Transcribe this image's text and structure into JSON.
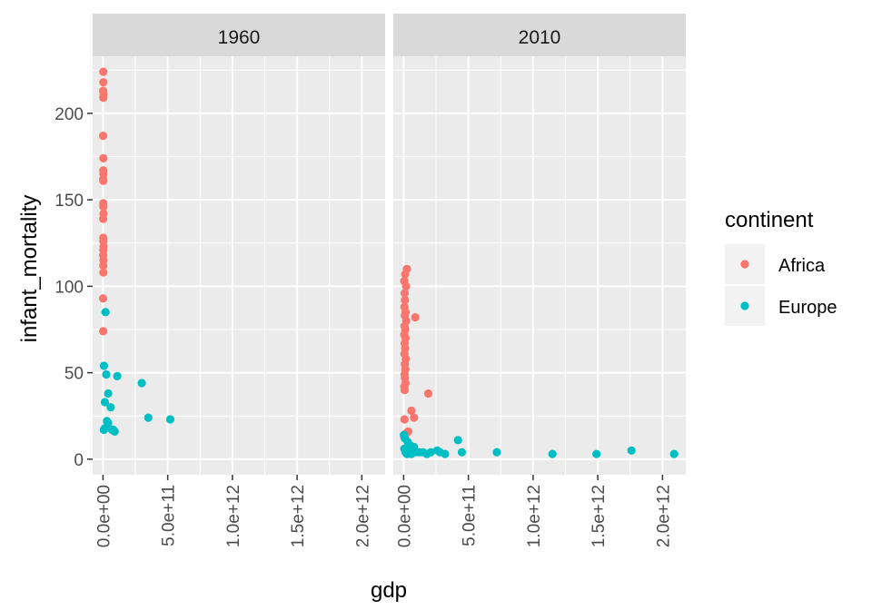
{
  "chart_data": {
    "type": "scatter",
    "xlabel": "gdp",
    "ylabel": "infant_mortality",
    "xlim": [
      0,
      2100000000000
    ],
    "ylim": [
      0,
      225
    ],
    "x_ticks": [
      0,
      500000000000,
      1000000000000,
      1500000000000,
      2000000000000
    ],
    "x_tick_labels": [
      "0.0e+00",
      "5.0e+11",
      "1.0e+12",
      "1.5e+12",
      "2.0e+12"
    ],
    "y_ticks": [
      0,
      50,
      100,
      150,
      200
    ],
    "y_tick_labels": [
      "0",
      "50",
      "100",
      "150",
      "200"
    ],
    "grid": true,
    "legend": {
      "title": "continent",
      "position": "right",
      "entries": [
        {
          "label": "Africa",
          "color": "#F8766D"
        },
        {
          "label": "Europe",
          "color": "#00BFC4"
        }
      ]
    },
    "facets": [
      {
        "label": "1960",
        "series": [
          {
            "name": "Africa",
            "color": "#F8766D",
            "points": [
              [
                2000000000,
                224
              ],
              [
                3000000000,
                218
              ],
              [
                1500000000,
                213
              ],
              [
                4000000000,
                211
              ],
              [
                2500000000,
                209
              ],
              [
                1000000000,
                187
              ],
              [
                3000000000,
                174
              ],
              [
                2000000000,
                167
              ],
              [
                3500000000,
                165
              ],
              [
                1500000000,
                162
              ],
              [
                2500000000,
                161
              ],
              [
                2000000000,
                148
              ],
              [
                3000000000,
                146
              ],
              [
                4000000000,
                142
              ],
              [
                1500000000,
                139
              ],
              [
                2000000000,
                128
              ],
              [
                3000000000,
                126
              ],
              [
                4000000000,
                123
              ],
              [
                2500000000,
                121
              ],
              [
                1500000000,
                118
              ],
              [
                3500000000,
                115
              ],
              [
                2000000000,
                112
              ],
              [
                3000000000,
                108
              ],
              [
                1000000000,
                93
              ],
              [
                1500000000,
                74
              ]
            ]
          },
          {
            "name": "Europe",
            "color": "#00BFC4",
            "points": [
              [
                20000000000,
                85
              ],
              [
                8000000000,
                54
              ],
              [
                25000000000,
                49
              ],
              [
                110000000000,
                48
              ],
              [
                300000000000,
                44
              ],
              [
                40000000000,
                38
              ],
              [
                15000000000,
                33
              ],
              [
                60000000000,
                30
              ],
              [
                350000000000,
                24
              ],
              [
                520000000000,
                23
              ],
              [
                30000000000,
                22
              ],
              [
                40000000000,
                21
              ],
              [
                7000000000,
                17
              ],
              [
                15000000000,
                18
              ],
              [
                80000000000,
                17
              ],
              [
                90000000000,
                16
              ],
              [
                70000000000,
                17
              ]
            ]
          }
        ]
      },
      {
        "label": "2010",
        "series": [
          {
            "name": "Africa",
            "color": "#F8766D",
            "points": [
              [
                25000000000,
                110
              ],
              [
                12000000000,
                107
              ],
              [
                5000000000,
                103
              ],
              [
                18000000000,
                100
              ],
              [
                8000000000,
                96
              ],
              [
                10000000000,
                92
              ],
              [
                6000000000,
                88
              ],
              [
                15000000000,
                85
              ],
              [
                9000000000,
                83
              ],
              [
                90000000000,
                82
              ],
              [
                20000000000,
                80
              ],
              [
                7000000000,
                77
              ],
              [
                12000000000,
                75
              ],
              [
                5000000000,
                72
              ],
              [
                14000000000,
                70
              ],
              [
                8000000000,
                67
              ],
              [
                11000000000,
                64
              ],
              [
                6000000000,
                61
              ],
              [
                16000000000,
                58
              ],
              [
                9000000000,
                55
              ],
              [
                13000000000,
                52
              ],
              [
                7000000000,
                49
              ],
              [
                10000000000,
                47
              ],
              [
                15000000000,
                44
              ],
              [
                5000000000,
                42
              ],
              [
                8000000000,
                40
              ],
              [
                190000000000,
                38
              ],
              [
                60000000000,
                28
              ],
              [
                80000000000,
                24
              ],
              [
                6000000000,
                23
              ],
              [
                35000000000,
                16
              ],
              [
                20000000000,
                15
              ],
              [
                10000000000,
                13
              ],
              [
                4000000000,
                13
              ]
            ]
          },
          {
            "name": "Europe",
            "color": "#00BFC4",
            "points": [
              [
                2000000000,
                14
              ],
              [
                10000000000,
                12
              ],
              [
                30000000000,
                10
              ],
              [
                50000000000,
                8
              ],
              [
                80000000000,
                7
              ],
              [
                5000000000,
                6
              ],
              [
                20000000000,
                5
              ],
              [
                15000000000,
                4
              ],
              [
                40000000000,
                4
              ],
              [
                25000000000,
                3
              ],
              [
                60000000000,
                3
              ],
              [
                90000000000,
                4
              ],
              [
                120000000000,
                4
              ],
              [
                150000000000,
                4
              ],
              [
                180000000000,
                3
              ],
              [
                210000000000,
                4
              ],
              [
                260000000000,
                5
              ],
              [
                280000000000,
                4
              ],
              [
                320000000000,
                3
              ],
              [
                420000000000,
                11
              ],
              [
                450000000000,
                4
              ],
              [
                720000000000,
                4
              ],
              [
                1150000000000,
                3
              ],
              [
                1490000000000,
                3
              ],
              [
                1760000000000,
                5
              ],
              [
                2090000000000,
                3
              ]
            ]
          }
        ]
      }
    ]
  }
}
